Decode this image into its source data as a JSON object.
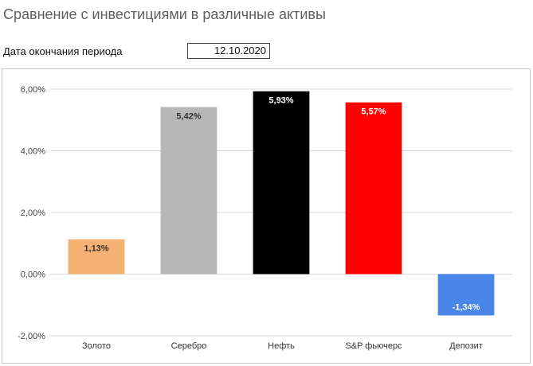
{
  "header": {
    "title": "Сравнение с инвестициями в различные активы",
    "period_label": "Дата окончания периода",
    "period_value": "12.10.2020"
  },
  "chart_data": {
    "type": "bar",
    "title": "",
    "xlabel": "",
    "ylabel": "",
    "categories": [
      "Золото",
      "Серебро",
      "Нефть",
      "S&P фьючерс",
      "Депозит"
    ],
    "values": [
      1.13,
      5.42,
      5.93,
      5.57,
      -1.34
    ],
    "data_labels": [
      "1,13%",
      "5,42%",
      "5,93%",
      "5,57%",
      "-1,34%"
    ],
    "bar_colors": [
      "#f4b173",
      "#b7b7b7",
      "#000000",
      "#ff0000",
      "#4a86e8"
    ],
    "label_colors": [
      "#333333",
      "#333333",
      "#ffffff",
      "#ffffff",
      "#ffffff"
    ],
    "ylim": [
      -2,
      6
    ],
    "yticks": [
      6,
      4,
      2,
      0,
      -2
    ],
    "ytick_labels": [
      "6,00%",
      "4,00%",
      "2,00%",
      "0,00%",
      "-2,00%"
    ],
    "grid": true,
    "gridline_color": "#d9d9d9"
  }
}
